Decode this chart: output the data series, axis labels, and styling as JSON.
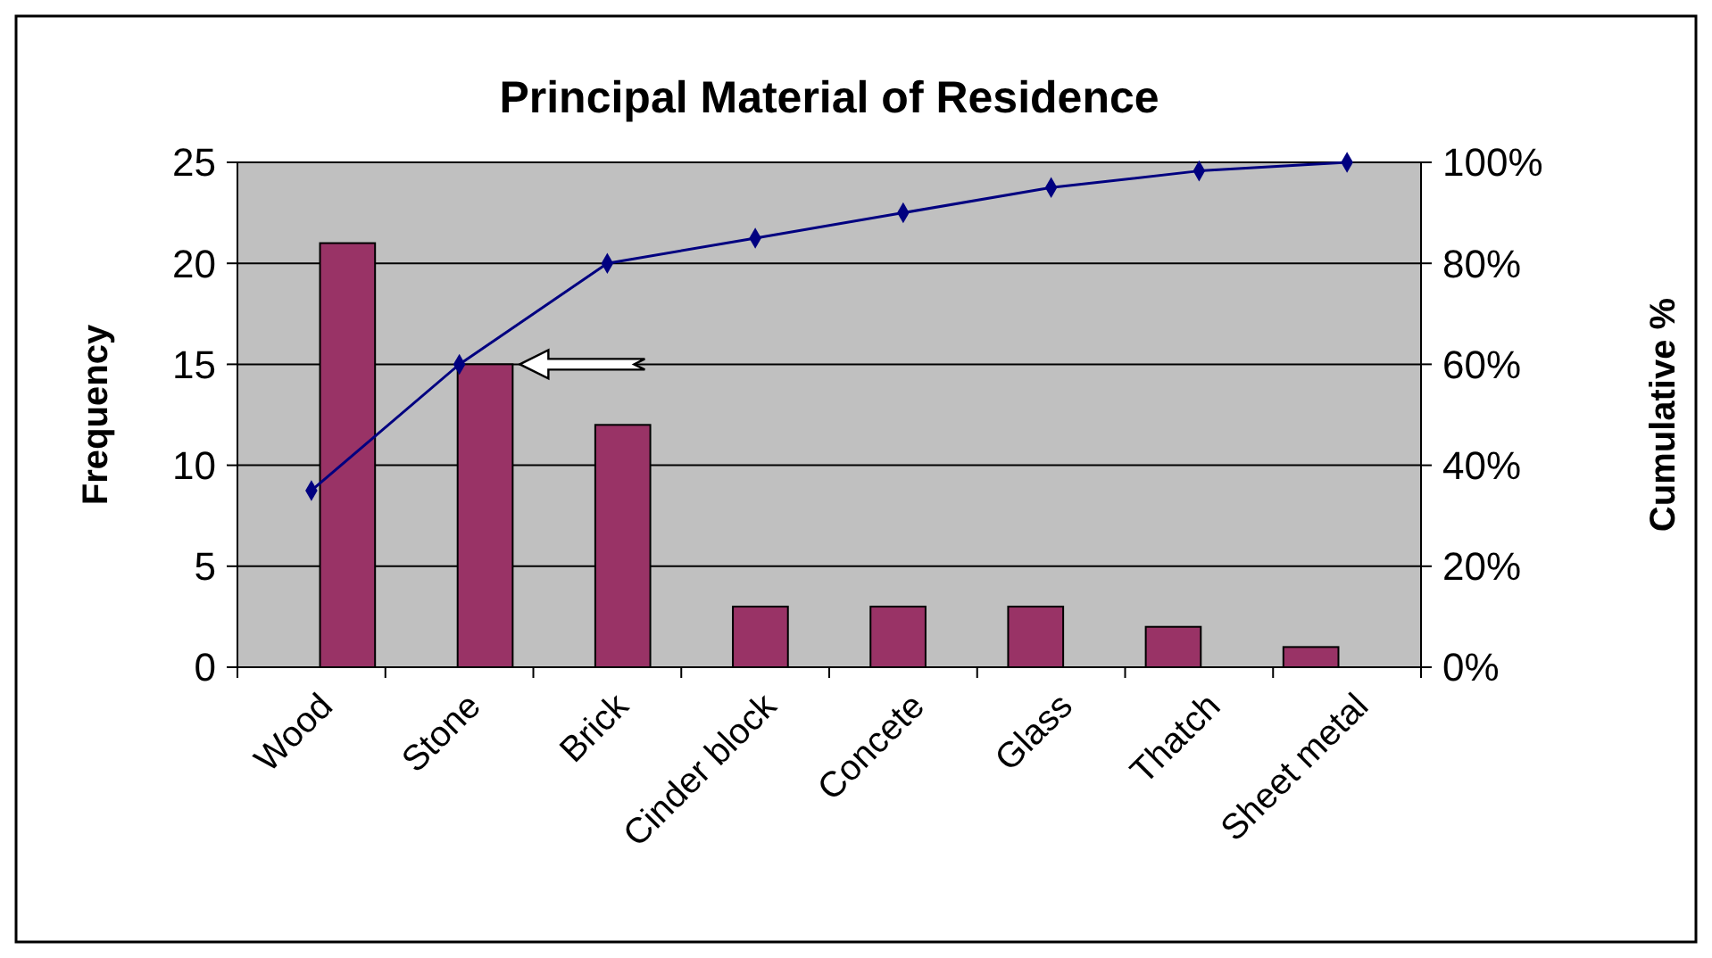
{
  "chart_data": {
    "type": "bar",
    "title": "Principal Material of Residence",
    "xlabel": null,
    "ylabel": "Frequency",
    "y2label": "Cumulative %",
    "categories": [
      "Wood",
      "Stone",
      "Brick",
      "Cinder block",
      "Concete",
      "Glass",
      "Thatch",
      "Sheet metal"
    ],
    "series": [
      {
        "color": "#993366",
        "values": [
          21,
          15,
          12,
          3,
          3,
          3,
          2,
          1
        ]
      },
      {
        "type": "line",
        "axis": "y2",
        "color": "#000080",
        "marker": "diamond",
        "values": [
          35,
          60,
          80,
          85,
          90,
          95,
          98.3,
          100
        ]
      }
    ],
    "ylim": [
      0,
      25
    ],
    "yticks": [
      0,
      5,
      10,
      15,
      20,
      25
    ],
    "y2lim": [
      0,
      100
    ],
    "y2ticks": [
      {
        "value": 0,
        "label": "0%"
      },
      {
        "value": 20,
        "label": "20%"
      },
      {
        "value": 40,
        "label": "40%"
      },
      {
        "value": 60,
        "label": "60%"
      },
      {
        "value": 80,
        "label": "80%"
      },
      {
        "value": 100,
        "label": "100%"
      }
    ],
    "grid": "y"
  }
}
